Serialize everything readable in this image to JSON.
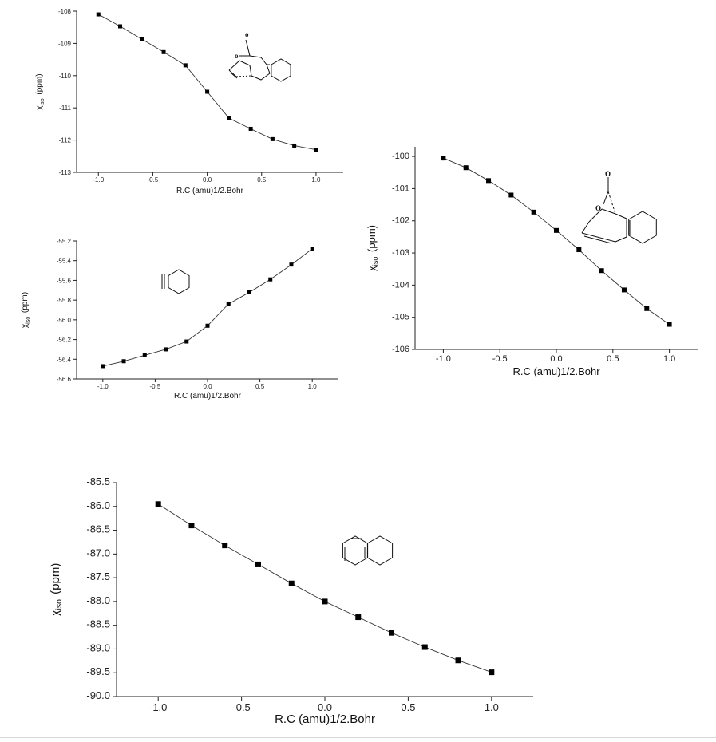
{
  "chart_data": [
    {
      "type": "line",
      "xlabel": "R.C (amu)1/2.Bohr",
      "ylabel": {
        "main": "χ",
        "sub": "iso",
        "unit": "(ppm)"
      },
      "xlim": [
        -1.2,
        1.25
      ],
      "ylim": [
        -113,
        -108
      ],
      "xticks": [
        "-1.0",
        "-0.5",
        "0.0",
        "0.5",
        "1.0"
      ],
      "yticks": [
        "-113",
        "-112",
        "-111",
        "-110",
        "-109",
        "-108"
      ],
      "x": [
        -1.0,
        -0.8,
        -0.6,
        -0.4,
        -0.2,
        0.0,
        0.2,
        0.4,
        0.6,
        0.8,
        1.0
      ],
      "y": [
        -108.1,
        -108.47,
        -108.87,
        -109.27,
        -109.68,
        -110.5,
        -111.32,
        -111.65,
        -111.97,
        -112.17,
        -112.3
      ],
      "marker": "square",
      "molecule": "bicyclic-lactone-cyclohexyne-complex",
      "atom_labels": [
        "o",
        "o"
      ]
    },
    {
      "type": "line",
      "xlabel": "R.C (amu)1/2.Bohr",
      "ylabel": {
        "main": "χ",
        "sub": "iso",
        "unit": "(ppm)"
      },
      "xlim": [
        -1.25,
        1.25
      ],
      "ylim": [
        -56.6,
        -55.2
      ],
      "xticks": [
        "-1.0",
        "-0.5",
        "0.0",
        "0.5",
        "1.0"
      ],
      "yticks": [
        "-56.6",
        "-56.4",
        "-56.2",
        "-56.0",
        "-55.8",
        "-55.6",
        "-55.4",
        "-55.2"
      ],
      "x": [
        -1.0,
        -0.8,
        -0.6,
        -0.4,
        -0.2,
        0.0,
        0.2,
        0.4,
        0.6,
        0.8,
        1.0
      ],
      "y": [
        -56.47,
        -56.42,
        -56.36,
        -56.3,
        -56.22,
        -56.06,
        -55.84,
        -55.72,
        -55.59,
        -55.44,
        -55.28
      ],
      "marker": "square",
      "molecule": "cyclohexyne"
    },
    {
      "type": "line",
      "xlabel": "R.C (amu)1/2.Bohr",
      "ylabel": {
        "main": "χ",
        "sub": "iso",
        "unit": "(ppm)"
      },
      "xlim": [
        -1.25,
        1.25
      ],
      "ylim": [
        -106,
        -99.7
      ],
      "xticks": [
        "-1.0",
        "-0.5",
        "0.0",
        "0.5",
        "1.0"
      ],
      "yticks": [
        "-106",
        "-105",
        "-104",
        "-103",
        "-102",
        "-101",
        "-100"
      ],
      "x": [
        -1.0,
        -0.8,
        -0.6,
        -0.4,
        -0.2,
        0.0,
        0.2,
        0.4,
        0.6,
        0.8,
        1.0
      ],
      "y": [
        -100.05,
        -100.35,
        -100.75,
        -101.2,
        -101.73,
        -102.3,
        -102.9,
        -103.55,
        -104.15,
        -104.73,
        -105.22
      ],
      "marker": "square",
      "molecule": "bicyclic-lactone-product",
      "atom_labels": [
        "O",
        "O"
      ]
    },
    {
      "type": "line",
      "xlabel": "R.C (amu)1/2.Bohr",
      "ylabel": {
        "main": "χ",
        "sub": "iso",
        "unit": "(ppm)"
      },
      "xlim": [
        -1.25,
        1.25
      ],
      "ylim": [
        -90.0,
        -85.5
      ],
      "xticks": [
        "-1.0",
        "-0.5",
        "0.0",
        "0.5",
        "1.0"
      ],
      "yticks": [
        "-90.0",
        "-89.5",
        "-89.0",
        "-88.5",
        "-88.0",
        "-87.5",
        "-87.0",
        "-86.5",
        "-86.0",
        "-85.5"
      ],
      "x": [
        -1.0,
        -0.8,
        -0.6,
        -0.4,
        -0.2,
        0.0,
        0.2,
        0.4,
        0.6,
        0.8,
        1.0
      ],
      "y": [
        -85.95,
        -86.4,
        -86.82,
        -87.22,
        -87.62,
        -88.0,
        -88.33,
        -88.66,
        -88.96,
        -89.24,
        -89.49
      ],
      "marker": "square",
      "molecule": "tetralin"
    }
  ]
}
